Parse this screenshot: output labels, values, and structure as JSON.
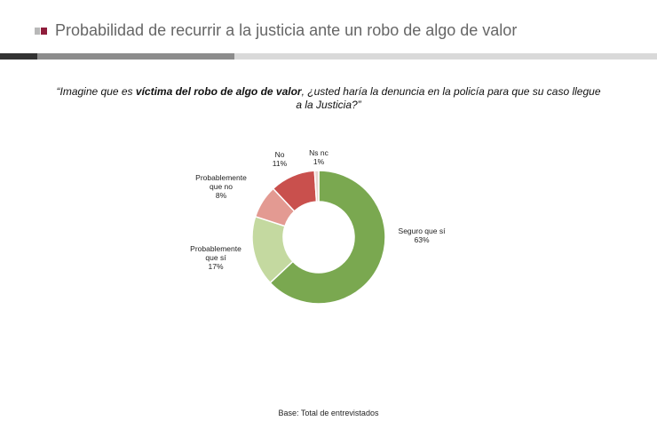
{
  "header": {
    "title": "Probabilidad de recurrir a la justicia ante un robo de algo de valor"
  },
  "question": {
    "part1": "“Imagine que es ",
    "bold": "víctima del robo de algo de valor",
    "part2": ", ¿usted haría la denuncia en la policía para que su caso llegue a la Justicia?”"
  },
  "chart_data": {
    "type": "pie",
    "donut": true,
    "slices": [
      {
        "label": "Seguro que sí",
        "percent_label": "63%",
        "value": 63,
        "color": "#7aa850"
      },
      {
        "label": "Probablemente que sí",
        "percent_label": "17%",
        "value": 17,
        "color": "#c4d9a0"
      },
      {
        "label": "Probablemente que no",
        "percent_label": "8%",
        "value": 8,
        "color": "#e39a92"
      },
      {
        "label": "No",
        "percent_label": "11%",
        "value": 11,
        "color": "#c9504d"
      },
      {
        "label": "Ns nc",
        "percent_label": "1%",
        "value": 1,
        "color": "#e8d5cf"
      }
    ]
  },
  "footer": {
    "base": "Base: Total de entrevistados"
  }
}
